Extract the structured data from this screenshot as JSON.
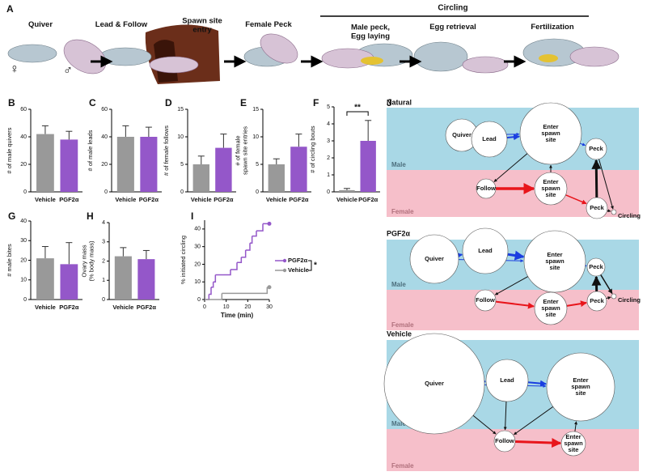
{
  "panel_a": {
    "letter": "A",
    "stages": [
      [
        "Quiver"
      ],
      [
        "Lead & Follow"
      ],
      [
        "Spawn site",
        "entry"
      ],
      [
        "Female Peck"
      ],
      [
        "Male peck,",
        "Egg laying"
      ],
      [
        "Egg retrieval"
      ],
      [
        "Fertilization"
      ]
    ],
    "group": "Circling",
    "female_symbol": "♀",
    "male_symbol": "♂"
  },
  "chart_data": [
    {
      "type": "bar",
      "panel": "B",
      "ylabel": [
        "# of male quivers"
      ],
      "categories": [
        "Vehicle",
        "PGF2α"
      ],
      "values": [
        42,
        38
      ],
      "errors": [
        6,
        6
      ],
      "colors": [
        "#999999",
        "#9457c9"
      ],
      "ylim": [
        0,
        60
      ],
      "yticks": [
        0,
        20,
        40,
        60
      ]
    },
    {
      "type": "bar",
      "panel": "C",
      "ylabel": [
        "# of male leads"
      ],
      "categories": [
        "Vehicle",
        "PGF2α"
      ],
      "values": [
        40,
        40
      ],
      "errors": [
        8,
        7
      ],
      "colors": [
        "#999999",
        "#9457c9"
      ],
      "ylim": [
        0,
        60
      ],
      "yticks": [
        0,
        20,
        40,
        60
      ]
    },
    {
      "type": "bar",
      "panel": "D",
      "ylabel": [
        "# of female follows"
      ],
      "categories": [
        "Vehicle",
        "PGF2α"
      ],
      "values": [
        5,
        8
      ],
      "errors": [
        1.5,
        2.5
      ],
      "colors": [
        "#999999",
        "#9457c9"
      ],
      "ylim": [
        0,
        15
      ],
      "yticks": [
        0,
        5,
        10,
        15
      ]
    },
    {
      "type": "bar",
      "panel": "E",
      "ylabel": [
        "# of female",
        "spawn site entries"
      ],
      "categories": [
        "Vehicle",
        "PGF2α"
      ],
      "values": [
        5,
        8.2
      ],
      "errors": [
        1,
        2.3
      ],
      "colors": [
        "#999999",
        "#9457c9"
      ],
      "ylim": [
        0,
        15
      ],
      "yticks": [
        0,
        5,
        10,
        15
      ]
    },
    {
      "type": "bar",
      "panel": "F",
      "ylabel": [
        "# of circling bouts"
      ],
      "categories": [
        "Vehicle",
        "PGF2α"
      ],
      "values": [
        0.1,
        3
      ],
      "errors": [
        0.1,
        1.2
      ],
      "colors": [
        "#999999",
        "#9457c9"
      ],
      "ylim": [
        0,
        5
      ],
      "yticks": [
        0,
        1,
        2,
        3,
        4,
        5
      ],
      "annotation": "**"
    },
    {
      "type": "bar",
      "panel": "G",
      "ylabel": [
        "# male bites"
      ],
      "categories": [
        "Vehicle",
        "PGF2α"
      ],
      "values": [
        21,
        18
      ],
      "errors": [
        6,
        11
      ],
      "colors": [
        "#999999",
        "#9457c9"
      ],
      "ylim": [
        0,
        40
      ],
      "yticks": [
        0,
        10,
        20,
        30,
        40
      ]
    },
    {
      "type": "bar",
      "panel": "H",
      "ylabel": [
        "Ovary mass",
        "(% body mass)"
      ],
      "categories": [
        "Vehicle",
        "PGF2α"
      ],
      "values": [
        2.25,
        2.1
      ],
      "errors": [
        0.45,
        0.45
      ],
      "colors": [
        "#999999",
        "#9457c9"
      ],
      "ylim": [
        0,
        4
      ],
      "yticks": [
        0,
        1,
        2,
        3,
        4
      ]
    },
    {
      "type": "step",
      "panel": "I",
      "ylabel": [
        "% initiated circling"
      ],
      "xlabel": "Time (min)",
      "xlim": [
        0,
        30
      ],
      "xticks": [
        0,
        10,
        20,
        30
      ],
      "ylim": [
        0,
        45
      ],
      "yticks": [
        0,
        10,
        20,
        30,
        40
      ],
      "annotation": "*",
      "series": [
        {
          "name": "PGF2α",
          "color": "#9457c9",
          "x": [
            0,
            2,
            3,
            4,
            5,
            9,
            12,
            15,
            17,
            19,
            21,
            22,
            24,
            27,
            30
          ],
          "values": [
            0,
            3,
            7,
            10,
            14,
            14,
            17,
            21,
            24,
            28,
            32,
            36,
            39,
            43,
            43
          ]
        },
        {
          "name": "Vehicle",
          "color": "#999999",
          "x": [
            0,
            8,
            29,
            30
          ],
          "values": [
            0,
            3.5,
            7,
            7
          ]
        }
      ]
    }
  ],
  "panel_j": {
    "letter": "J",
    "networks": [
      {
        "title": "Natural",
        "male": "Male",
        "female": "Female",
        "nodes": [
          [
            "Quiver"
          ],
          [
            "Lead"
          ],
          [
            "Enter",
            "spawn",
            "site"
          ],
          [
            "Peck"
          ],
          [
            "Follow"
          ],
          [
            "Enter",
            "spawn",
            "site"
          ],
          [
            "Peck"
          ],
          [
            "Circling"
          ]
        ]
      },
      {
        "title": "PGF2α",
        "male": "Male",
        "female": "Female",
        "nodes": [
          [
            "Quiver"
          ],
          [
            "Lead"
          ],
          [
            "Enter",
            "spawn",
            "site"
          ],
          [
            "Peck"
          ],
          [
            "Follow"
          ],
          [
            "Enter",
            "spawn",
            "site"
          ],
          [
            "Peck"
          ],
          [
            "Circling"
          ]
        ]
      },
      {
        "title": "Vehicle",
        "male": "Male",
        "female": "Female",
        "nodes": [
          [
            "Quiver"
          ],
          [
            "Lead"
          ],
          [
            "Enter",
            "spawn",
            "site"
          ],
          [
            "Follow"
          ],
          [
            "Enter",
            "spawn",
            "site"
          ]
        ]
      }
    ]
  }
}
